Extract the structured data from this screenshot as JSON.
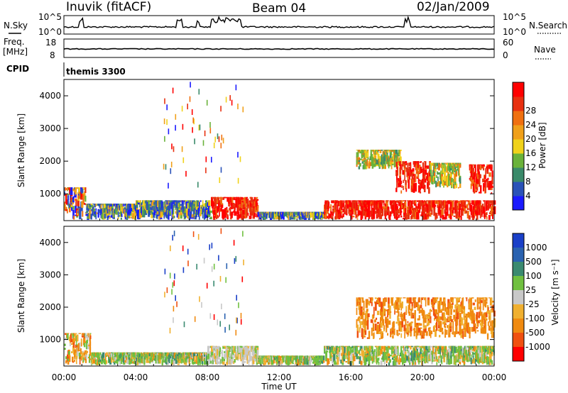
{
  "header": {
    "station": "Inuvik (fitACF)",
    "beam": "Beam 04",
    "date": "02/Jan/2009"
  },
  "top_panels": {
    "nsky_label": "N.Sky",
    "nsky_ticks": [
      "10^5",
      "10^0"
    ],
    "nsearch_label": "N.Search",
    "nsearch_ticks": [
      "10^5",
      "10^0"
    ],
    "freq_label_1": "Freq.",
    "freq_label_2": "[MHz]",
    "freq_ticks": [
      "18",
      "8"
    ],
    "nave_label": "Nave",
    "nave_ticks": [
      "60",
      "0"
    ],
    "cpid_label": "CPID",
    "cpid_value": "themis 3300"
  },
  "chart_data": [
    {
      "type": "heatmap",
      "panel": "power",
      "ylabel": "Slant Range [km]",
      "yticks": [
        "1000",
        "2000",
        "3000",
        "4000"
      ],
      "ylim": [
        180,
        4500
      ],
      "xlim_hours": [
        0,
        24
      ],
      "colorbar_label": "Power [dB]",
      "colorbar_ticks": [
        "4",
        "8",
        "12",
        "16",
        "20",
        "24",
        "28"
      ],
      "colors": [
        "#1a1aff",
        "#2a52b8",
        "#3a8a6a",
        "#6ab23a",
        "#f0d21a",
        "#f0a01a",
        "#f07010",
        "#e83010",
        "#ff0000"
      ],
      "patches": [
        {
          "t": [
            0.0,
            1.2
          ],
          "r": [
            200,
            1200
          ],
          "level": "mixed-high"
        },
        {
          "t": [
            1.2,
            4.0
          ],
          "r": [
            200,
            700
          ],
          "level": "mixed-low"
        },
        {
          "t": [
            4.0,
            8.2
          ],
          "r": [
            200,
            800
          ],
          "level": "mixed-low"
        },
        {
          "t": [
            8.2,
            10.8
          ],
          "r": [
            200,
            900
          ],
          "level": "high"
        },
        {
          "t": [
            10.8,
            14.5
          ],
          "r": [
            200,
            450
          ],
          "level": "mixed-low"
        },
        {
          "t": [
            14.5,
            24.0
          ],
          "r": [
            200,
            800
          ],
          "level": "high"
        },
        {
          "t": [
            16.3,
            18.8
          ],
          "r": [
            1750,
            2350
          ],
          "level": "mid"
        },
        {
          "t": [
            18.5,
            20.4
          ],
          "r": [
            1000,
            2000
          ],
          "level": "high"
        },
        {
          "t": [
            20.4,
            22.1
          ],
          "r": [
            1150,
            1950
          ],
          "level": "mid"
        },
        {
          "t": [
            22.6,
            23.9
          ],
          "r": [
            1000,
            1900
          ],
          "level": "high"
        }
      ]
    },
    {
      "type": "heatmap",
      "panel": "velocity",
      "ylabel": "Slant Range [km]",
      "yticks": [
        "1000",
        "2000",
        "3000",
        "4000"
      ],
      "ylim": [
        180,
        4500
      ],
      "xlim_hours": [
        0,
        24
      ],
      "xticks": [
        "00:00",
        "04:00",
        "08:00",
        "12:00",
        "16:00",
        "20:00",
        "00:00"
      ],
      "xlabel": "Time UT",
      "colorbar_label": "Velocity [m s⁻¹]",
      "colorbar_ticks": [
        "1000",
        "500",
        "100",
        "25",
        "-25",
        "-100",
        "-500",
        "-1000"
      ],
      "colors": [
        "#1a40c8",
        "#2a62b0",
        "#3a8a70",
        "#70c040",
        "#c8c8c8",
        "#f0b030",
        "#f08a10",
        "#f05010",
        "#ff0000"
      ],
      "patches": [
        {
          "t": [
            0.0,
            1.5
          ],
          "r": [
            200,
            1200
          ],
          "level": "mixed-neg"
        },
        {
          "t": [
            1.5,
            8.0
          ],
          "r": [
            200,
            600
          ],
          "level": "mixed-pos"
        },
        {
          "t": [
            8.0,
            10.8
          ],
          "r": [
            200,
            800
          ],
          "level": "near-zero"
        },
        {
          "t": [
            10.8,
            14.5
          ],
          "r": [
            200,
            500
          ],
          "level": "mixed-pos"
        },
        {
          "t": [
            14.5,
            24.0
          ],
          "r": [
            200,
            800
          ],
          "level": "mixed-pos"
        },
        {
          "t": [
            16.3,
            24.0
          ],
          "r": [
            1000,
            2300
          ],
          "level": "neg"
        }
      ]
    }
  ]
}
